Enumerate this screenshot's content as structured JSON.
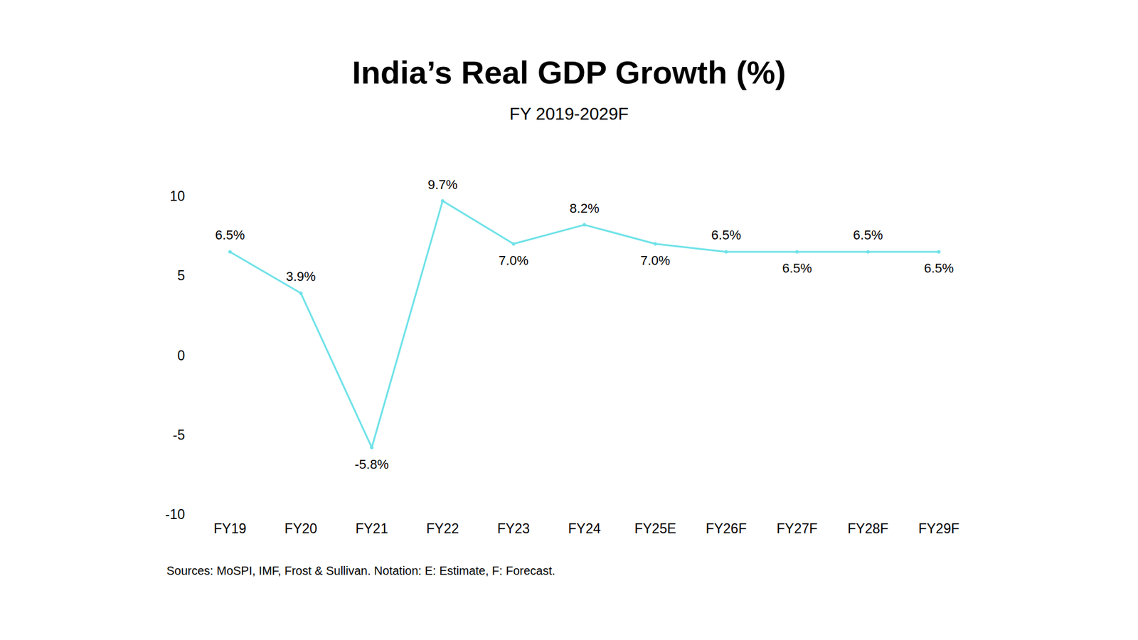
{
  "chart_data": {
    "type": "line",
    "title": "India’s Real GDP Growth (%)",
    "subtitle": "FY 2019-2029F",
    "annotations": [
      "Sources: MoSPI, IMF, Frost & Sullivan. Notation: E: Estimate, F: Forecast."
    ],
    "categories": [
      "FY19",
      "FY20",
      "FY21",
      "FY22",
      "FY23",
      "FY24",
      "FY25E",
      "FY26F",
      "FY27F",
      "FY28F",
      "FY29F"
    ],
    "values": [
      6.5,
      3.9,
      -5.8,
      9.7,
      7.0,
      8.2,
      7.0,
      6.5,
      6.5,
      6.5,
      6.5
    ],
    "value_labels": [
      "6.5%",
      "3.9%",
      "-5.8%",
      "9.7%",
      "7.0%",
      "8.2%",
      "7.0%",
      "6.5%",
      "6.5%",
      "6.5%",
      "6.5%"
    ],
    "color": "#6fe2e8",
    "marker": "circle",
    "ylim": [
      -10,
      10
    ],
    "yticks": [
      -10,
      -5,
      0,
      5,
      10
    ],
    "grid": false,
    "data_labels": true
  }
}
